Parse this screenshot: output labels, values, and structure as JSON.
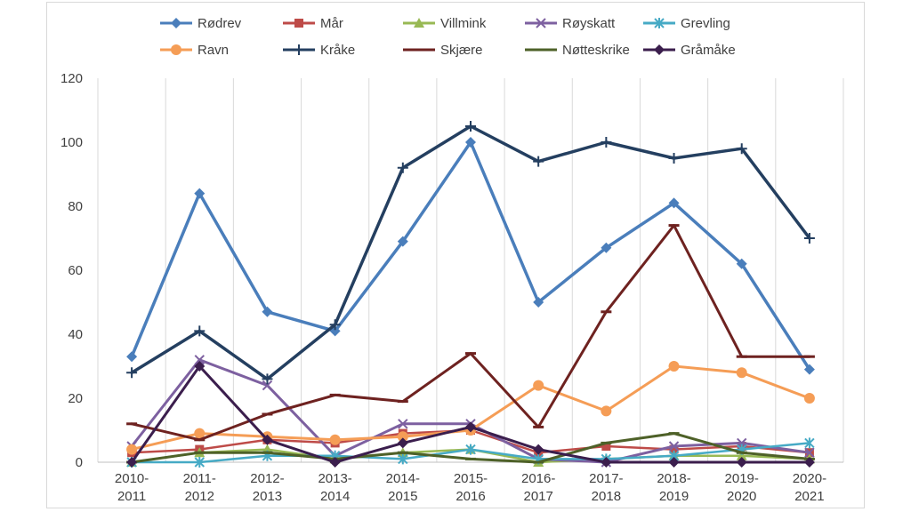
{
  "chart_data": {
    "type": "line",
    "title": "",
    "xlabel": "",
    "ylabel": "",
    "ylim": [
      0,
      120
    ],
    "yticks": [
      "0",
      "20",
      "40",
      "60",
      "80",
      "100",
      "120"
    ],
    "grid": "vertical",
    "legend_position": "top",
    "categories": [
      [
        "2010-",
        "2011"
      ],
      [
        "2011-",
        "2012"
      ],
      [
        "2012-",
        "2013"
      ],
      [
        "2013-",
        "2014"
      ],
      [
        "2014-",
        "2015"
      ],
      [
        "2015-",
        "2016"
      ],
      [
        "2016-",
        "2017"
      ],
      [
        "2017-",
        "2018"
      ],
      [
        "2018-",
        "2019"
      ],
      [
        "2019-",
        "2020"
      ],
      [
        "2020-",
        "2021"
      ]
    ],
    "series": [
      {
        "name": "Rødrev",
        "color": "#4a7ebb",
        "marker": "diamond",
        "width": 3.5,
        "values": [
          33,
          84,
          47,
          41,
          69,
          100,
          50,
          67,
          81,
          62,
          29
        ]
      },
      {
        "name": "Mår",
        "color": "#be4b48",
        "marker": "square",
        "width": 2.5,
        "values": [
          3,
          4,
          7,
          6,
          9,
          10,
          3,
          5,
          4,
          5,
          3
        ]
      },
      {
        "name": "Villmink",
        "color": "#98b954",
        "marker": "triangle",
        "width": 2.5,
        "values": [
          0,
          3,
          4,
          1,
          3,
          4,
          0,
          1,
          2,
          2,
          1
        ]
      },
      {
        "name": "Røyskatt",
        "color": "#7d60a0",
        "marker": "x",
        "width": 3,
        "values": [
          5,
          32,
          24,
          2,
          12,
          12,
          1,
          0,
          5,
          6,
          3
        ]
      },
      {
        "name": "Grevling",
        "color": "#46aac5",
        "marker": "asterisk",
        "width": 2.5,
        "values": [
          0,
          0,
          2,
          2,
          1,
          4,
          1,
          1,
          2,
          4,
          6
        ]
      },
      {
        "name": "Ravn",
        "color": "#f59d56",
        "marker": "circle",
        "width": 3,
        "values": [
          4,
          9,
          8,
          7,
          8,
          10,
          24,
          16,
          30,
          28,
          20
        ]
      },
      {
        "name": "Kråke",
        "color": "#243f60",
        "marker": "plus",
        "width": 3.5,
        "values": [
          28,
          41,
          26,
          43,
          92,
          105,
          94,
          100,
          95,
          98,
          70
        ]
      },
      {
        "name": "Skjære",
        "color": "#6e2220",
        "marker": "dash",
        "width": 3,
        "values": [
          12,
          7,
          15,
          21,
          19,
          34,
          11,
          47,
          74,
          33,
          33
        ]
      },
      {
        "name": "Nøtteskrike",
        "color": "#4e6128",
        "marker": "dash",
        "width": 3,
        "values": [
          0,
          3,
          3,
          1,
          3,
          1,
          0,
          6,
          9,
          3,
          1
        ]
      },
      {
        "name": "Gråmåke",
        "color": "#3b1e4d",
        "marker": "diamond",
        "width": 3,
        "values": [
          0,
          30,
          7,
          0,
          6,
          11,
          4,
          0,
          0,
          0,
          0
        ]
      }
    ]
  }
}
